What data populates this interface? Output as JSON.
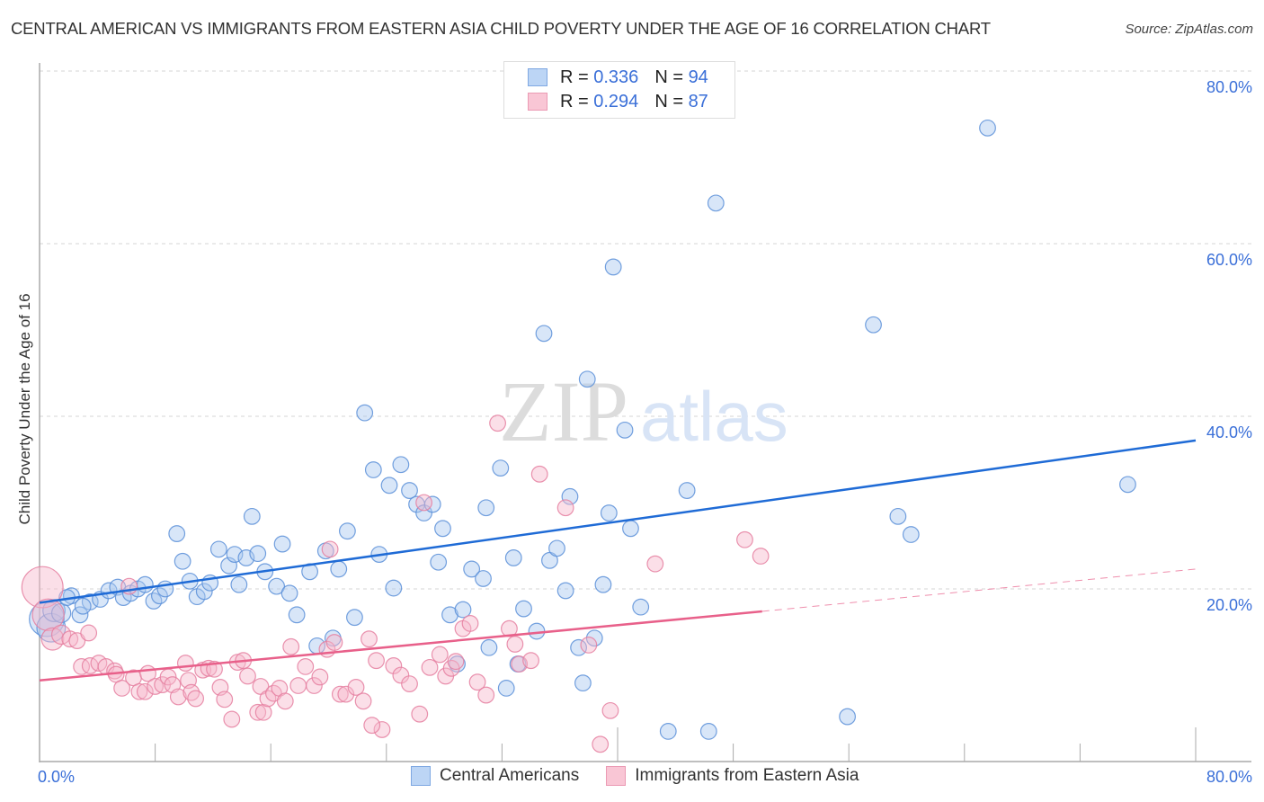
{
  "header": {
    "title": "CENTRAL AMERICAN VS IMMIGRANTS FROM EASTERN ASIA CHILD POVERTY UNDER THE AGE OF 16 CORRELATION CHART",
    "source": "Source: ZipAtlas.com"
  },
  "legend": {
    "rows": [
      {
        "r_label": "R = ",
        "r_value": "0.336",
        "n_label": "N = ",
        "n_value": "94"
      },
      {
        "r_label": "R = ",
        "r_value": "0.294",
        "n_label": "N = ",
        "n_value": "87"
      }
    ]
  },
  "bottom_legend": {
    "items": [
      "Central Americans",
      "Immigrants from Eastern Asia"
    ]
  },
  "watermark": {
    "zip": "ZIP",
    "atlas": "atlas"
  },
  "colors": {
    "blue_fill": "#a9c8f0",
    "blue_stroke": "#5a8fd8",
    "blue_line": "#1f6bd6",
    "pink_fill": "#f7b8cb",
    "pink_stroke": "#e57fa0",
    "pink_line": "#e8608a",
    "tick_label": "#3a6fd8"
  },
  "chart_data": {
    "type": "scatter",
    "title": "CENTRAL AMERICAN VS IMMIGRANTS FROM EASTERN ASIA CHILD POVERTY UNDER THE AGE OF 16 CORRELATION CHART",
    "xlabel": "",
    "ylabel": "Child Poverty Under the Age of 16",
    "xlim": [
      0,
      80
    ],
    "ylim": [
      0,
      80
    ],
    "x_tick_labels": [
      "0.0%",
      "80.0%"
    ],
    "y_ticks": [
      20,
      40,
      60,
      80
    ],
    "y_tick_labels": [
      "20.0%",
      "40.0%",
      "60.0%",
      "80.0%"
    ],
    "grid": "horizontal dashed",
    "legend_placement": "top-center",
    "series": [
      {
        "name": "Central Americans",
        "R": 0.336,
        "N": 94,
        "trend": {
          "x": [
            0,
            80
          ],
          "y": [
            18.4,
            37.2
          ],
          "style": "solid"
        },
        "points": [
          [
            0.5,
            16.5,
            2.2
          ],
          [
            0.8,
            15.5,
            1.8
          ],
          [
            1.0,
            17.5,
            1.4
          ],
          [
            1.5,
            17.2,
            1.2
          ],
          [
            2.2,
            19.2,
            1.0
          ],
          [
            2.8,
            17.0,
            1.0
          ],
          [
            3.5,
            18.5,
            1.0
          ],
          [
            4.2,
            18.8,
            1.0
          ],
          [
            4.8,
            19.8,
            1.0
          ],
          [
            5.4,
            20.2,
            1.0
          ],
          [
            5.8,
            19.0,
            1.0
          ],
          [
            6.3,
            19.5,
            1.0
          ],
          [
            6.8,
            20.0,
            1.0
          ],
          [
            7.3,
            20.5,
            1.0
          ],
          [
            7.9,
            18.6,
            1.0
          ],
          [
            8.3,
            19.2,
            1.0
          ],
          [
            8.7,
            20.0,
            1.0
          ],
          [
            9.5,
            26.4,
            1.0
          ],
          [
            9.9,
            23.2,
            1.0
          ],
          [
            10.4,
            20.9,
            1.0
          ],
          [
            10.9,
            19.1,
            1.0
          ],
          [
            11.4,
            19.7,
            1.0
          ],
          [
            11.8,
            20.7,
            1.0
          ],
          [
            12.4,
            24.6,
            1.0
          ],
          [
            13.1,
            22.7,
            1.0
          ],
          [
            13.5,
            24.0,
            1.0
          ],
          [
            13.8,
            20.5,
            1.0
          ],
          [
            14.3,
            23.6,
            1.0
          ],
          [
            14.7,
            28.4,
            1.0
          ],
          [
            15.1,
            24.1,
            1.0
          ],
          [
            15.6,
            22.0,
            1.0
          ],
          [
            16.4,
            20.3,
            1.0
          ],
          [
            16.8,
            25.2,
            1.0
          ],
          [
            17.3,
            19.5,
            1.0
          ],
          [
            17.8,
            17.0,
            1.0
          ],
          [
            18.7,
            22.0,
            1.0
          ],
          [
            19.2,
            13.4,
            1.0
          ],
          [
            19.8,
            24.4,
            1.0
          ],
          [
            20.3,
            14.3,
            1.0
          ],
          [
            20.7,
            22.3,
            1.0
          ],
          [
            21.3,
            26.7,
            1.0
          ],
          [
            21.8,
            16.7,
            1.0
          ],
          [
            22.5,
            40.4,
            1.0
          ],
          [
            23.1,
            33.8,
            1.0
          ],
          [
            23.5,
            24.0,
            1.0
          ],
          [
            24.2,
            32.0,
            1.0
          ],
          [
            24.5,
            20.1,
            1.0
          ],
          [
            25.0,
            34.4,
            1.0
          ],
          [
            25.6,
            31.4,
            1.0
          ],
          [
            26.1,
            29.8,
            1.0
          ],
          [
            26.6,
            28.8,
            1.0
          ],
          [
            27.2,
            29.8,
            1.0
          ],
          [
            27.6,
            23.1,
            1.0
          ],
          [
            27.9,
            27.0,
            1.0
          ],
          [
            28.4,
            17.0,
            1.0
          ],
          [
            28.9,
            11.3,
            1.0
          ],
          [
            29.3,
            17.6,
            1.0
          ],
          [
            29.9,
            22.3,
            1.0
          ],
          [
            30.7,
            21.2,
            1.0
          ],
          [
            31.1,
            13.2,
            1.0
          ],
          [
            30.9,
            29.4,
            1.0
          ],
          [
            31.9,
            34.0,
            1.0
          ],
          [
            32.3,
            8.5,
            1.0
          ],
          [
            32.8,
            23.6,
            1.0
          ],
          [
            33.1,
            11.3,
            1.0
          ],
          [
            33.5,
            17.7,
            1.0
          ],
          [
            34.4,
            15.1,
            1.0
          ],
          [
            34.9,
            49.6,
            1.0
          ],
          [
            35.3,
            23.3,
            1.0
          ],
          [
            35.8,
            24.7,
            1.0
          ],
          [
            36.4,
            19.8,
            1.0
          ],
          [
            36.7,
            30.7,
            1.0
          ],
          [
            37.3,
            13.2,
            1.0
          ],
          [
            37.6,
            9.1,
            1.0
          ],
          [
            37.9,
            44.3,
            1.0
          ],
          [
            38.4,
            14.3,
            1.0
          ],
          [
            39.0,
            20.5,
            1.0
          ],
          [
            39.4,
            28.8,
            1.0
          ],
          [
            39.7,
            57.3,
            1.0
          ],
          [
            40.5,
            38.4,
            1.0
          ],
          [
            40.9,
            27.0,
            1.0
          ],
          [
            41.6,
            17.9,
            1.0
          ],
          [
            43.5,
            3.5,
            1.0
          ],
          [
            44.8,
            31.4,
            1.0
          ],
          [
            46.3,
            3.5,
            1.0
          ],
          [
            46.8,
            64.7,
            1.0
          ],
          [
            55.9,
            5.2,
            1.0
          ],
          [
            57.7,
            50.6,
            1.0
          ],
          [
            59.4,
            28.4,
            1.0
          ],
          [
            60.3,
            26.3,
            1.0
          ],
          [
            65.6,
            73.4,
            1.0
          ],
          [
            75.3,
            32.1,
            1.0
          ],
          [
            1.9,
            19.0,
            1.0
          ],
          [
            3.0,
            18.0,
            1.0
          ]
        ]
      },
      {
        "name": "Immigrants from Eastern Asia",
        "R": 0.294,
        "N": 87,
        "trend": {
          "x": [
            0,
            50
          ],
          "y": [
            9.4,
            17.4
          ],
          "style": "solid",
          "extension": {
            "x": [
              50,
              80
            ],
            "y": [
              17.4,
              22.3
            ],
            "style": "dashed"
          }
        },
        "points": [
          [
            0.2,
            20.2,
            2.6
          ],
          [
            0.6,
            17.0,
            2.0
          ],
          [
            0.9,
            14.2,
            1.4
          ],
          [
            1.5,
            14.7,
            1.2
          ],
          [
            2.1,
            14.2,
            1.0
          ],
          [
            2.6,
            14.0,
            1.0
          ],
          [
            3.4,
            14.9,
            1.0
          ],
          [
            2.9,
            11.0,
            1.0
          ],
          [
            3.5,
            11.1,
            1.0
          ],
          [
            4.1,
            11.4,
            1.0
          ],
          [
            4.6,
            11.0,
            1.0
          ],
          [
            5.2,
            10.5,
            1.0
          ],
          [
            5.3,
            10.1,
            1.0
          ],
          [
            5.7,
            8.5,
            1.0
          ],
          [
            6.2,
            20.3,
            1.0
          ],
          [
            6.5,
            9.7,
            1.0
          ],
          [
            6.9,
            8.1,
            1.0
          ],
          [
            7.3,
            8.1,
            1.0
          ],
          [
            7.5,
            10.2,
            1.0
          ],
          [
            8.0,
            8.7,
            1.0
          ],
          [
            8.5,
            8.9,
            1.0
          ],
          [
            8.9,
            9.8,
            1.0
          ],
          [
            9.2,
            8.9,
            1.0
          ],
          [
            9.6,
            7.5,
            1.0
          ],
          [
            10.1,
            11.4,
            1.0
          ],
          [
            10.3,
            9.4,
            1.0
          ],
          [
            10.5,
            8.0,
            1.0
          ],
          [
            10.8,
            7.3,
            1.0
          ],
          [
            11.3,
            10.6,
            1.0
          ],
          [
            11.7,
            10.8,
            1.0
          ],
          [
            12.1,
            10.7,
            1.0
          ],
          [
            12.5,
            8.6,
            1.0
          ],
          [
            12.8,
            7.2,
            1.0
          ],
          [
            13.3,
            4.9,
            1.0
          ],
          [
            13.7,
            11.5,
            1.0
          ],
          [
            14.1,
            11.7,
            1.0
          ],
          [
            14.4,
            9.9,
            1.0
          ],
          [
            15.1,
            5.7,
            1.0
          ],
          [
            15.5,
            5.7,
            1.0
          ],
          [
            15.3,
            8.7,
            1.0
          ],
          [
            15.8,
            7.3,
            1.0
          ],
          [
            16.2,
            7.9,
            1.0
          ],
          [
            16.6,
            8.5,
            1.0
          ],
          [
            17.0,
            7.0,
            1.0
          ],
          [
            17.4,
            13.3,
            1.0
          ],
          [
            17.9,
            8.8,
            1.0
          ],
          [
            18.4,
            11.0,
            1.0
          ],
          [
            19.0,
            8.8,
            1.0
          ],
          [
            19.4,
            9.8,
            1.0
          ],
          [
            19.9,
            13.0,
            1.0
          ],
          [
            20.1,
            24.6,
            1.0
          ],
          [
            20.4,
            13.8,
            1.0
          ],
          [
            20.8,
            7.8,
            1.0
          ],
          [
            21.2,
            7.8,
            1.0
          ],
          [
            21.9,
            8.6,
            1.0
          ],
          [
            22.4,
            7.0,
            1.0
          ],
          [
            22.8,
            14.2,
            1.0
          ],
          [
            23.3,
            11.7,
            1.0
          ],
          [
            23.7,
            3.7,
            1.0
          ],
          [
            23.0,
            4.2,
            1.0
          ],
          [
            24.5,
            11.1,
            1.0
          ],
          [
            25.0,
            10.0,
            1.0
          ],
          [
            25.6,
            9.0,
            1.0
          ],
          [
            26.3,
            5.5,
            1.0
          ],
          [
            26.6,
            30.0,
            1.0
          ],
          [
            27.0,
            10.9,
            1.0
          ],
          [
            27.7,
            12.4,
            1.0
          ],
          [
            28.1,
            9.9,
            1.0
          ],
          [
            28.5,
            10.8,
            1.0
          ],
          [
            28.8,
            11.6,
            1.0
          ],
          [
            29.3,
            15.4,
            1.0
          ],
          [
            29.8,
            16.0,
            1.0
          ],
          [
            30.3,
            9.2,
            1.0
          ],
          [
            30.9,
            7.7,
            1.0
          ],
          [
            31.7,
            39.2,
            1.0
          ],
          [
            32.5,
            15.4,
            1.0
          ],
          [
            32.9,
            13.6,
            1.0
          ],
          [
            33.2,
            11.3,
            1.0
          ],
          [
            34.0,
            11.7,
            1.0
          ],
          [
            34.6,
            33.3,
            1.0
          ],
          [
            36.4,
            29.4,
            1.0
          ],
          [
            38.0,
            13.5,
            1.0
          ],
          [
            39.5,
            5.9,
            1.0
          ],
          [
            38.8,
            2.0,
            1.0
          ],
          [
            42.6,
            22.9,
            1.0
          ],
          [
            48.8,
            25.7,
            1.0
          ],
          [
            49.9,
            23.8,
            1.0
          ]
        ]
      }
    ]
  }
}
